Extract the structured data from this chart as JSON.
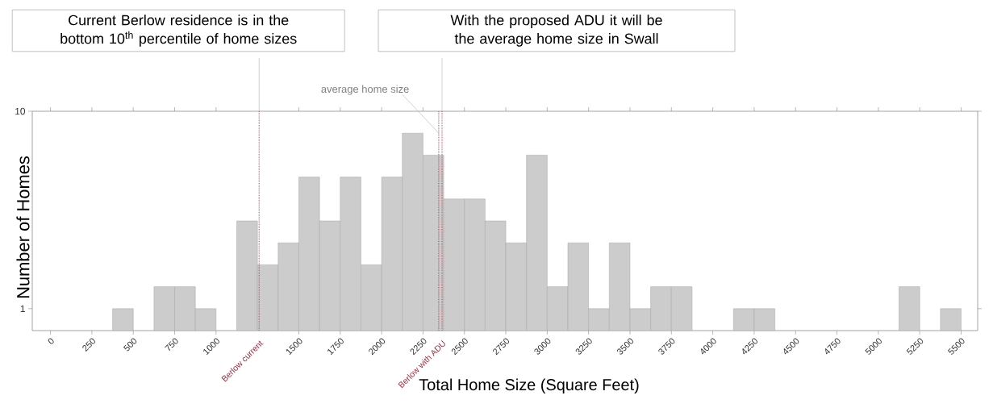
{
  "chart_data": {
    "type": "histogram",
    "xlabel": "Total Home Size (Square Feet)",
    "ylabel": "Number of Homes",
    "bins": [
      0,
      125,
      250,
      375,
      500,
      625,
      750,
      875,
      1000,
      1125,
      1250,
      1375,
      1500,
      1625,
      1750,
      1875,
      2000,
      2125,
      2250,
      2375,
      2500,
      2625,
      2750,
      2875,
      3000,
      3125,
      3250,
      3375,
      3500,
      3625,
      3750,
      3875,
      4000,
      4125,
      4250,
      4375,
      4500,
      4625,
      4750,
      4875,
      5000,
      5125,
      5250,
      5375,
      5500
    ],
    "values": [
      0,
      0,
      0,
      1,
      0,
      2,
      2,
      1,
      0,
      5,
      3,
      4,
      7,
      5,
      7,
      3,
      7,
      9,
      8,
      6,
      6,
      5,
      4,
      8,
      2,
      4,
      1,
      4,
      1,
      2,
      2,
      0,
      0,
      1,
      1,
      0,
      0,
      0,
      0,
      0,
      0,
      2,
      0,
      1
    ],
    "color": "#cccccc",
    "xlim": [
      -110,
      5600
    ],
    "ylim": [
      0,
      10
    ],
    "xticks": [
      0,
      250,
      500,
      750,
      1000,
      1500,
      1750,
      2000,
      2250,
      2500,
      2750,
      3000,
      3250,
      3500,
      3750,
      4000,
      4250,
      4500,
      4750,
      5000,
      5250,
      5500
    ],
    "yticks": [
      1,
      10
    ],
    "ref_lines": [
      {
        "axis": "x",
        "value": 2345,
        "label": "average home size",
        "color": "#a3293d",
        "line_style": "dotted"
      },
      {
        "axis": "x",
        "value": 1260,
        "label": "Berlow current",
        "color": "#a3293d",
        "line_style": "dotted"
      },
      {
        "axis": "x",
        "value": 2365,
        "label": "Berlow with ADU",
        "color": "#a3293d",
        "line_style": "dotted"
      }
    ],
    "annotations": [
      {
        "text": "Current Berlow residence is in the bottom 10$^{th}$ percentile of home sizes",
        "x": 1260,
        "y": 10
      },
      {
        "text": "With the proposed ADU it will be the average home size in Swall",
        "x": 2365,
        "y": 10
      }
    ],
    "grid": false
  }
}
